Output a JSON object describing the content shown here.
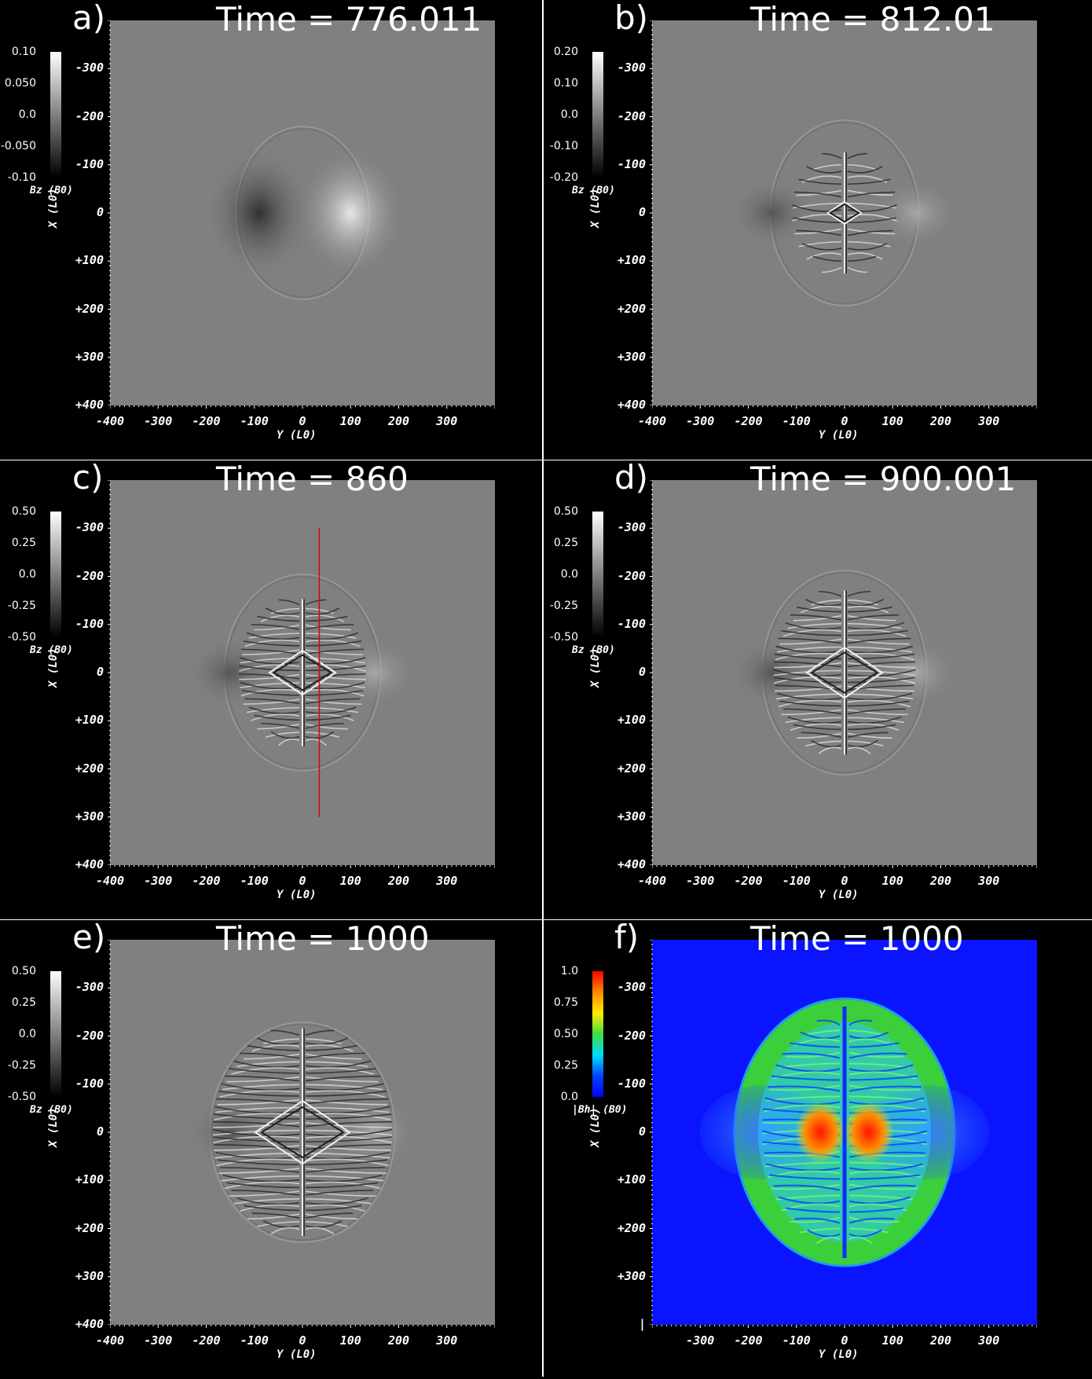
{
  "panels": [
    {
      "letter": "a)",
      "title": "Time = 776.011",
      "field": "Bz",
      "field_unit": "(B0)",
      "colorbar": {
        "type": "gray",
        "ticks": [
          "0.10",
          "0.050",
          "0.0",
          "-0.050",
          "-0.10"
        ]
      },
      "yticks": [
        "-300",
        "-200",
        "-100",
        "0",
        "+100",
        "+200",
        "+300",
        "+400"
      ],
      "xticks": [
        "-400",
        "-300",
        "-200",
        "-100",
        "0",
        "100",
        "200",
        "300"
      ],
      "xlabel": "Y (L0)",
      "ylabel": "X (L0)"
    },
    {
      "letter": "b)",
      "title": "Time = 812.01",
      "field": "Bz",
      "field_unit": "(B0)",
      "colorbar": {
        "type": "gray",
        "ticks": [
          "0.20",
          "0.10",
          "0.0",
          "-0.10",
          "-0.20"
        ]
      },
      "yticks": [
        "-300",
        "-200",
        "-100",
        "0",
        "+100",
        "+200",
        "+300",
        "+400"
      ],
      "xticks": [
        "-400",
        "-300",
        "-200",
        "-100",
        "0",
        "100",
        "200",
        "300"
      ],
      "xlabel": "Y (L0)",
      "ylabel": "X (L0)"
    },
    {
      "letter": "c)",
      "title": "Time = 860",
      "field": "Bz",
      "field_unit": "(B0)",
      "colorbar": {
        "type": "gray",
        "ticks": [
          "0.50",
          "0.25",
          "0.0",
          "-0.25",
          "-0.50"
        ]
      },
      "yticks": [
        "-300",
        "-200",
        "-100",
        "0",
        "+100",
        "+200",
        "+300",
        "+400"
      ],
      "xticks": [
        "-400",
        "-300",
        "-200",
        "-100",
        "0",
        "100",
        "200",
        "300"
      ],
      "xlabel": "Y (L0)",
      "ylabel": "X (L0)",
      "cut_line_color": "#e00000"
    },
    {
      "letter": "d)",
      "title": "Time = 900.001",
      "field": "Bz",
      "field_unit": "(B0)",
      "colorbar": {
        "type": "gray",
        "ticks": [
          "0.50",
          "0.25",
          "0.0",
          "-0.25",
          "-0.50"
        ]
      },
      "yticks": [
        "-300",
        "-200",
        "-100",
        "0",
        "+100",
        "+200",
        "+300",
        "+400"
      ],
      "xticks": [
        "-400",
        "-300",
        "-200",
        "-100",
        "0",
        "100",
        "200",
        "300"
      ],
      "xlabel": "Y (L0)",
      "ylabel": "X (L0)"
    },
    {
      "letter": "e)",
      "title": "Time = 1000",
      "field": "Bz",
      "field_unit": "(B0)",
      "colorbar": {
        "type": "gray",
        "ticks": [
          "0.50",
          "0.25",
          "0.0",
          "-0.25",
          "-0.50"
        ]
      },
      "yticks": [
        "-300",
        "-200",
        "-100",
        "0",
        "+100",
        "+200",
        "+300",
        "+400"
      ],
      "xticks": [
        "-400",
        "-300",
        "-200",
        "-100",
        "0",
        "100",
        "200",
        "300"
      ],
      "xlabel": "Y (L0)",
      "ylabel": "X (L0)"
    },
    {
      "letter": "f)",
      "title": "Time = 1000",
      "field": "|Bh|",
      "field_unit": "(B0)",
      "colorbar": {
        "type": "rainbow",
        "ticks": [
          "1.0",
          "0.75",
          "0.50",
          "0.25",
          "0.0"
        ]
      },
      "yticks": [
        "-300",
        "-200",
        "-100",
        "0",
        "+100",
        "+200",
        "+300",
        "|"
      ],
      "xticks": [
        "",
        "-300",
        "-200",
        "-100",
        "0",
        "100",
        "200",
        "300"
      ],
      "xlabel": "Y (L0)",
      "ylabel": "X (L0)"
    }
  ],
  "colors": {
    "background": "#000000",
    "plot_gray": "#808080",
    "rainbow_bg": "#0000ff"
  }
}
